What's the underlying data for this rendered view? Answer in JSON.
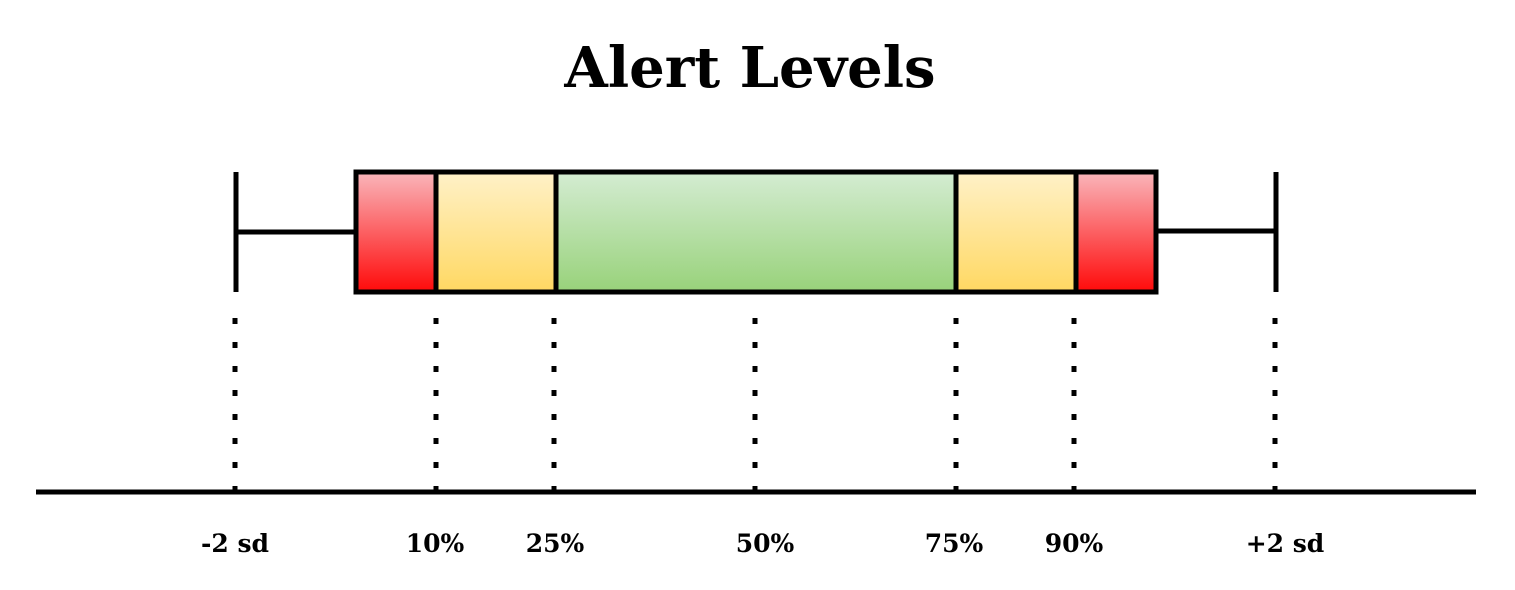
{
  "title": "Alert Levels",
  "markers": [
    {
      "key": "minus2sd",
      "label": "-2 sd"
    },
    {
      "key": "p10",
      "label": "10%"
    },
    {
      "key": "p25",
      "label": "25%"
    },
    {
      "key": "p50",
      "label": "50%"
    },
    {
      "key": "p75",
      "label": "75%"
    },
    {
      "key": "p90",
      "label": "90%"
    },
    {
      "key": "plus2sd",
      "label": "+2 sd"
    }
  ],
  "alert_zones": [
    {
      "from": "start",
      "to": "10%",
      "level": "red"
    },
    {
      "from": "10%",
      "to": "25%",
      "level": "amber"
    },
    {
      "from": "25%",
      "to": "75%",
      "level": "green"
    },
    {
      "from": "75%",
      "to": "90%",
      "level": "amber"
    },
    {
      "from": "90%",
      "to": "end",
      "level": "red"
    }
  ],
  "colors": {
    "red_top": "#f9b6bb",
    "red_bottom": "#ff0a0a",
    "amber_top": "#fff1c8",
    "amber_bottom": "#ffd862",
    "green_top": "#d4ecd2",
    "green_bottom": "#98d27a",
    "line": "#000000"
  }
}
